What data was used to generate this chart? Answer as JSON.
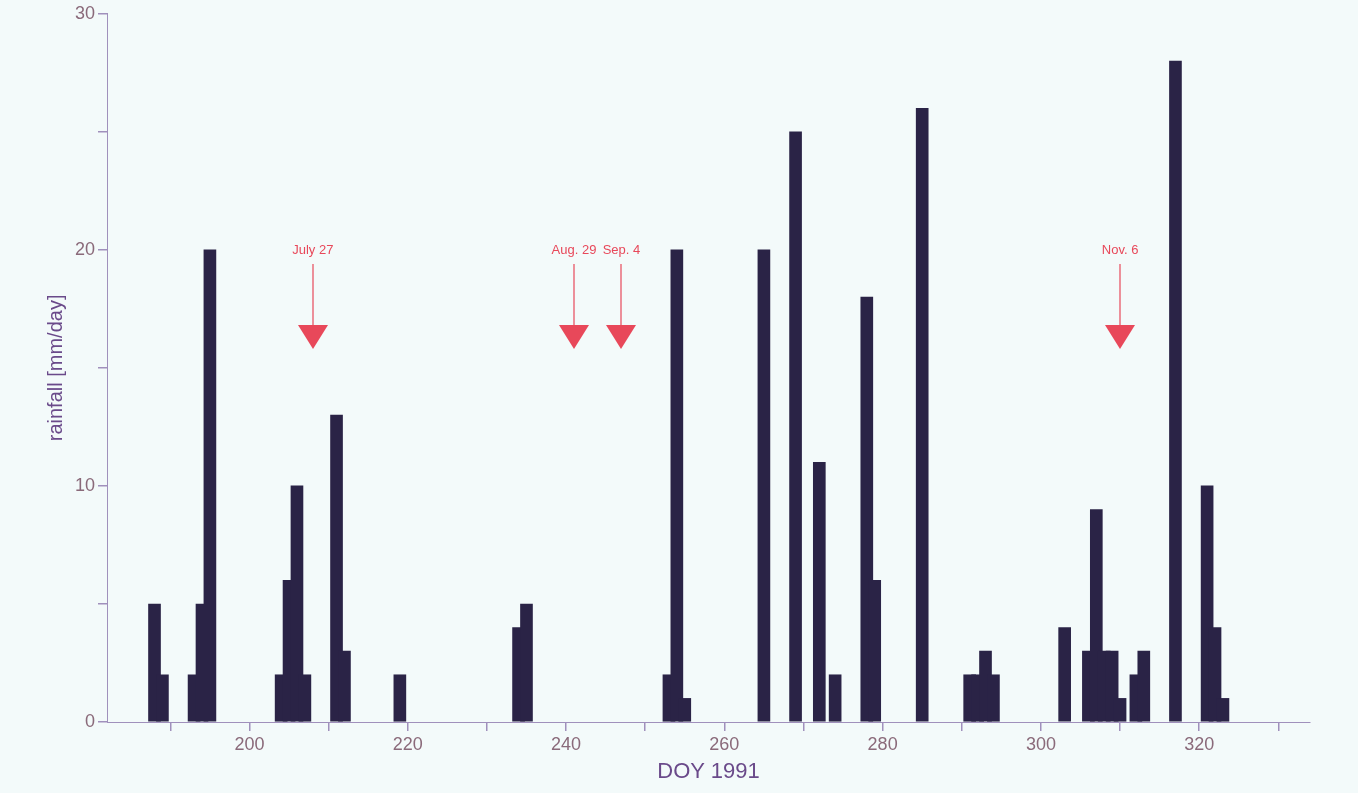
{
  "chart_data": {
    "type": "bar",
    "xlabel": "DOY 1991",
    "ylabel": "rainfall [mm/day]",
    "color": "#2a2346",
    "x": [
      188,
      189,
      193,
      194,
      195,
      204,
      205,
      206,
      207,
      211,
      212,
      219,
      234,
      235,
      253,
      254,
      255,
      265,
      269,
      272,
      274,
      278,
      279,
      285,
      291,
      292,
      293,
      294,
      303,
      306,
      307,
      308,
      309,
      310,
      312,
      313,
      317,
      321,
      322,
      323
    ],
    "values": [
      5,
      2,
      2,
      5,
      20,
      2,
      6,
      10,
      2,
      13,
      3,
      2,
      4,
      5,
      2,
      20,
      1,
      20,
      25,
      11,
      2,
      18,
      6,
      26,
      2,
      2,
      3,
      2,
      4,
      3,
      9,
      3,
      3,
      1,
      2,
      3,
      28,
      10,
      4,
      1
    ],
    "xlim": [
      182,
      334
    ],
    "xticks": [
      {
        "value": 190,
        "label": null
      },
      200,
      {
        "value": 210,
        "label": null
      },
      220,
      {
        "value": 230,
        "label": null
      },
      240,
      {
        "value": 250,
        "label": null
      },
      260,
      {
        "value": 270,
        "label": null
      },
      280,
      {
        "value": 290,
        "label": null
      },
      300,
      {
        "value": 310,
        "label": null
      },
      320,
      {
        "value": 330,
        "label": null
      }
    ],
    "ylim": [
      0,
      30
    ],
    "yticks": [
      0,
      {
        "value": 5,
        "label": null
      },
      10,
      {
        "value": 15,
        "label": null
      },
      20,
      {
        "value": 25,
        "label": null
      },
      30
    ],
    "ref_lines": [
      {
        "axis": "x",
        "value": 208,
        "label": "July 27",
        "color": "#e8485a"
      },
      {
        "axis": "x",
        "value": 241,
        "label": "Aug. 29",
        "color": "#e8485a"
      },
      {
        "axis": "x",
        "value": 247,
        "label": "Sep. 4",
        "color": "#e8485a"
      },
      {
        "axis": "x",
        "value": 310,
        "label": "Nov. 6",
        "color": "#e8485a"
      }
    ]
  }
}
